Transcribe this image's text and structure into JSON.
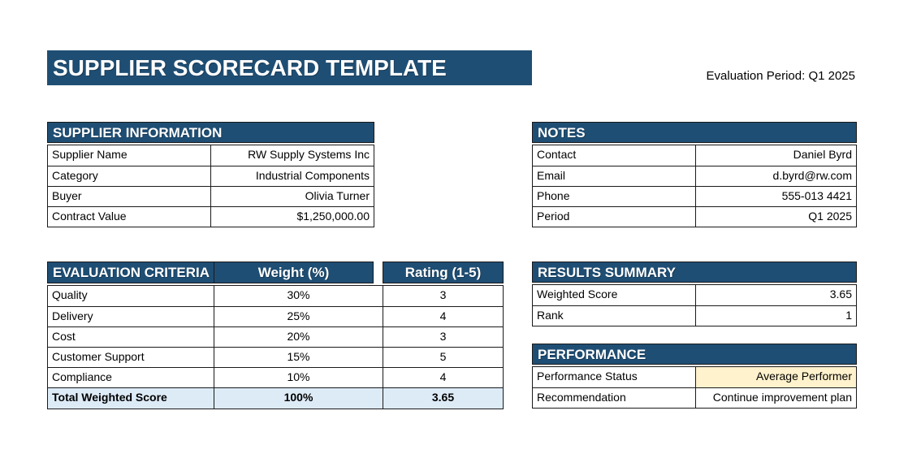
{
  "page": {
    "title": "SUPPLIER SCORECARD TEMPLATE",
    "evaluation_period": "Evaluation Period: Q1 2025"
  },
  "colors": {
    "header_blue": "#1F4E74",
    "total_row_blue": "#DDEBF7",
    "status_cream": "#FFF2CC"
  },
  "supplier_info": {
    "header": "SUPPLIER INFORMATION",
    "rows": [
      {
        "label": "Supplier Name",
        "value": "RW Supply Systems Inc"
      },
      {
        "label": "Category",
        "value": "Industrial Components"
      },
      {
        "label": "Buyer",
        "value": "Olivia Turner"
      },
      {
        "label": "Contract Value",
        "value": "$1,250,000.00"
      }
    ]
  },
  "notes": {
    "header": "NOTES",
    "rows": [
      {
        "label": "Contact",
        "value": "Daniel Byrd"
      },
      {
        "label": "Email",
        "value": "d.byrd@rw.com"
      },
      {
        "label": "Phone",
        "value": "555-013 4421"
      },
      {
        "label": "Period",
        "value": "Q1 2025"
      }
    ]
  },
  "evaluation": {
    "headers": [
      "EVALUATION CRITERIA",
      "Weight (%)",
      "Rating (1-5)"
    ],
    "rows": [
      {
        "criterion": "Quality",
        "weight": "30%",
        "rating": "3"
      },
      {
        "criterion": "Delivery",
        "weight": "25%",
        "rating": "4"
      },
      {
        "criterion": "Cost",
        "weight": "20%",
        "rating": "3"
      },
      {
        "criterion": "Customer Support",
        "weight": "15%",
        "rating": "5"
      },
      {
        "criterion": "Compliance",
        "weight": "10%",
        "rating": "4"
      }
    ],
    "total": {
      "criterion": "Total Weighted Score",
      "weight": "100%",
      "rating": "3.65"
    }
  },
  "results": {
    "header": "RESULTS SUMMARY",
    "rows": [
      {
        "label": "Weighted Score",
        "value": "3.65"
      },
      {
        "label": "Rank",
        "value": "1"
      }
    ]
  },
  "performance": {
    "header": "PERFORMANCE",
    "rows": [
      {
        "label": "Performance Status",
        "value": "Average Performer"
      },
      {
        "label": "Recommendation",
        "value": "Continue improvement plan"
      }
    ]
  }
}
